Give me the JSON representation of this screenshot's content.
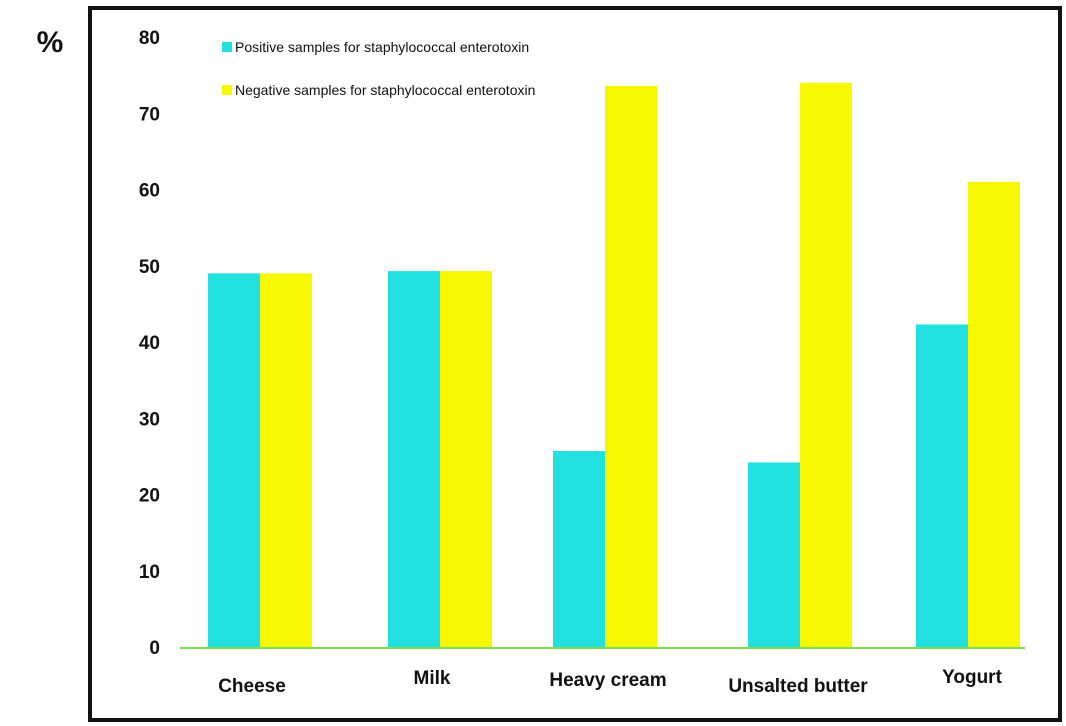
{
  "chart_data": {
    "type": "bar",
    "ylabel": "%",
    "ylim": [
      0,
      80
    ],
    "yticks": [
      "0",
      "10",
      "20",
      "30",
      "40",
      "50",
      "60",
      "70",
      "80"
    ],
    "categories": [
      "Cheese",
      "Milk",
      "Heavy cream",
      "Unsalted butter",
      "Yogurt"
    ],
    "series": [
      {
        "name": "Positive samples for staphylococcal enterotoxin",
        "color": "#22e0e0",
        "values": [
          49,
          49.3,
          25.7,
          24.2,
          42.3
        ]
      },
      {
        "name": "Negative samples for staphylococcal enterotoxin",
        "color": "#f7f700",
        "values": [
          49,
          49.3,
          73.6,
          74,
          61
        ]
      }
    ],
    "legend_position": "top-left",
    "grid": false
  }
}
